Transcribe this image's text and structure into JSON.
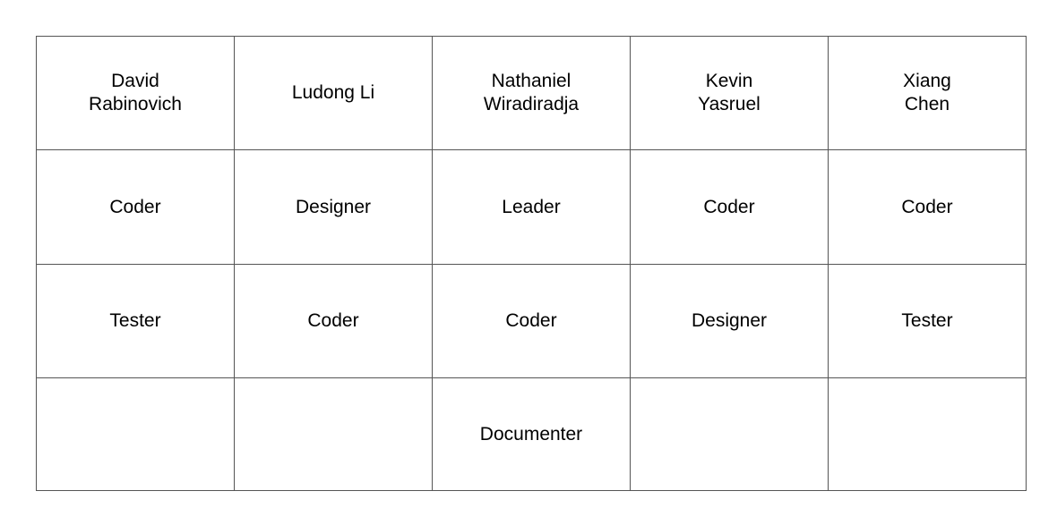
{
  "members": [
    {
      "name_lines": [
        "David",
        "Rabinovich"
      ]
    },
    {
      "name_lines": [
        "Ludong Li"
      ]
    },
    {
      "name_lines": [
        "Nathaniel",
        "Wiradiradja"
      ]
    },
    {
      "name_lines": [
        "Kevin",
        "Yasruel"
      ]
    },
    {
      "name_lines": [
        "Xiang",
        "Chen"
      ]
    }
  ],
  "roles": [
    [
      "Coder",
      "Designer",
      "Leader",
      "Coder",
      "Coder"
    ],
    [
      "Tester",
      "Coder",
      "Coder",
      "Designer",
      "Tester"
    ],
    [
      "",
      "",
      "Documenter",
      "",
      ""
    ]
  ]
}
